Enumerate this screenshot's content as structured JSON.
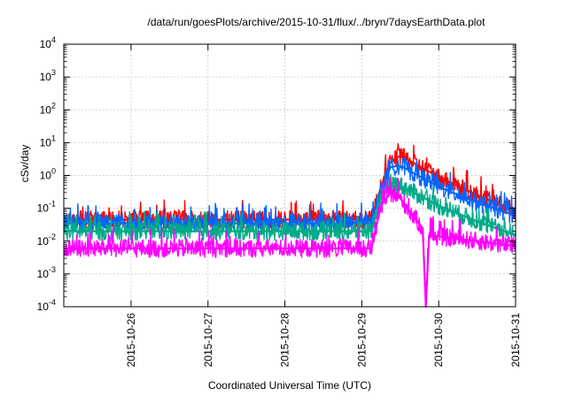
{
  "chart_data": {
    "type": "line",
    "title": "/data/run/goesPlots/archive/2015-10-31/flux/../bryn/7daysEarthData.plot",
    "xlabel": "Coordinated Universal Time (UTC)",
    "ylabel": "cSv/day",
    "x_range": [
      "2015-10-25 03:00",
      "2015-10-31 00:00"
    ],
    "xticks": [
      "2015-10-26",
      "2015-10-27",
      "2015-10-28",
      "2015-10-29",
      "2015-10-30",
      "2015-10-31"
    ],
    "y_scale": "log",
    "ylim": [
      0.0001,
      10000
    ],
    "yticks": [
      {
        "value": 0.0001,
        "base": "10",
        "exp": "-4"
      },
      {
        "value": 0.001,
        "base": "10",
        "exp": "-3"
      },
      {
        "value": 0.01,
        "base": "10",
        "exp": "-2"
      },
      {
        "value": 0.1,
        "base": "10",
        "exp": "-1"
      },
      {
        "value": 1,
        "base": "10",
        "exp": "0"
      },
      {
        "value": 10,
        "base": "10",
        "exp": "1"
      },
      {
        "value": 100,
        "base": "10",
        "exp": "2"
      },
      {
        "value": 1000,
        "base": "10",
        "exp": "3"
      },
      {
        "value": 10000,
        "base": "10",
        "exp": "4"
      }
    ],
    "grid": true,
    "series": [
      {
        "color": "#ff0000",
        "values": [
          [
            "2015-10-25 03:00",
            0.045
          ],
          [
            "2015-10-29 03:00",
            0.045
          ],
          [
            "2015-10-29 06:00",
            0.45
          ],
          [
            "2015-10-29 09:00",
            2.5
          ],
          [
            "2015-10-29 12:00",
            4.0
          ],
          [
            "2015-10-30 00:00",
            0.9
          ],
          [
            "2015-10-30 12:00",
            0.25
          ],
          [
            "2015-10-31 00:00",
            0.08
          ]
        ]
      },
      {
        "color": "#0066ff",
        "values": [
          [
            "2015-10-25 03:00",
            0.035
          ],
          [
            "2015-10-29 03:00",
            0.035
          ],
          [
            "2015-10-29 06:00",
            0.35
          ],
          [
            "2015-10-29 09:00",
            1.8
          ],
          [
            "2015-10-29 12:00",
            2.0
          ],
          [
            "2015-10-30 00:00",
            0.45
          ],
          [
            "2015-10-30 12:00",
            0.15
          ],
          [
            "2015-10-31 00:00",
            0.06
          ]
        ]
      },
      {
        "color": "#00aa88",
        "values": [
          [
            "2015-10-25 03:00",
            0.02
          ],
          [
            "2015-10-29 03:00",
            0.02
          ],
          [
            "2015-10-29 06:00",
            0.2
          ],
          [
            "2015-10-29 09:00",
            0.6
          ],
          [
            "2015-10-29 12:00",
            0.5
          ],
          [
            "2015-10-30 00:00",
            0.12
          ],
          [
            "2015-10-30 12:00",
            0.04
          ],
          [
            "2015-10-31 00:00",
            0.015
          ]
        ]
      },
      {
        "color": "#ff00ff",
        "values": [
          [
            "2015-10-25 03:00",
            0.006
          ],
          [
            "2015-10-29 03:00",
            0.006
          ],
          [
            "2015-10-29 06:00",
            0.12
          ],
          [
            "2015-10-29 09:00",
            0.3
          ],
          [
            "2015-10-29 12:00",
            0.2
          ],
          [
            "2015-10-29 16:00",
            0.06
          ],
          [
            "2015-10-29 19:00",
            0.025
          ],
          [
            "2015-10-29 20:00",
            0.0001
          ],
          [
            "2015-10-29 21:00",
            0.015
          ],
          [
            "2015-10-30 12:00",
            0.01
          ],
          [
            "2015-10-31 00:00",
            0.007
          ]
        ]
      }
    ]
  }
}
